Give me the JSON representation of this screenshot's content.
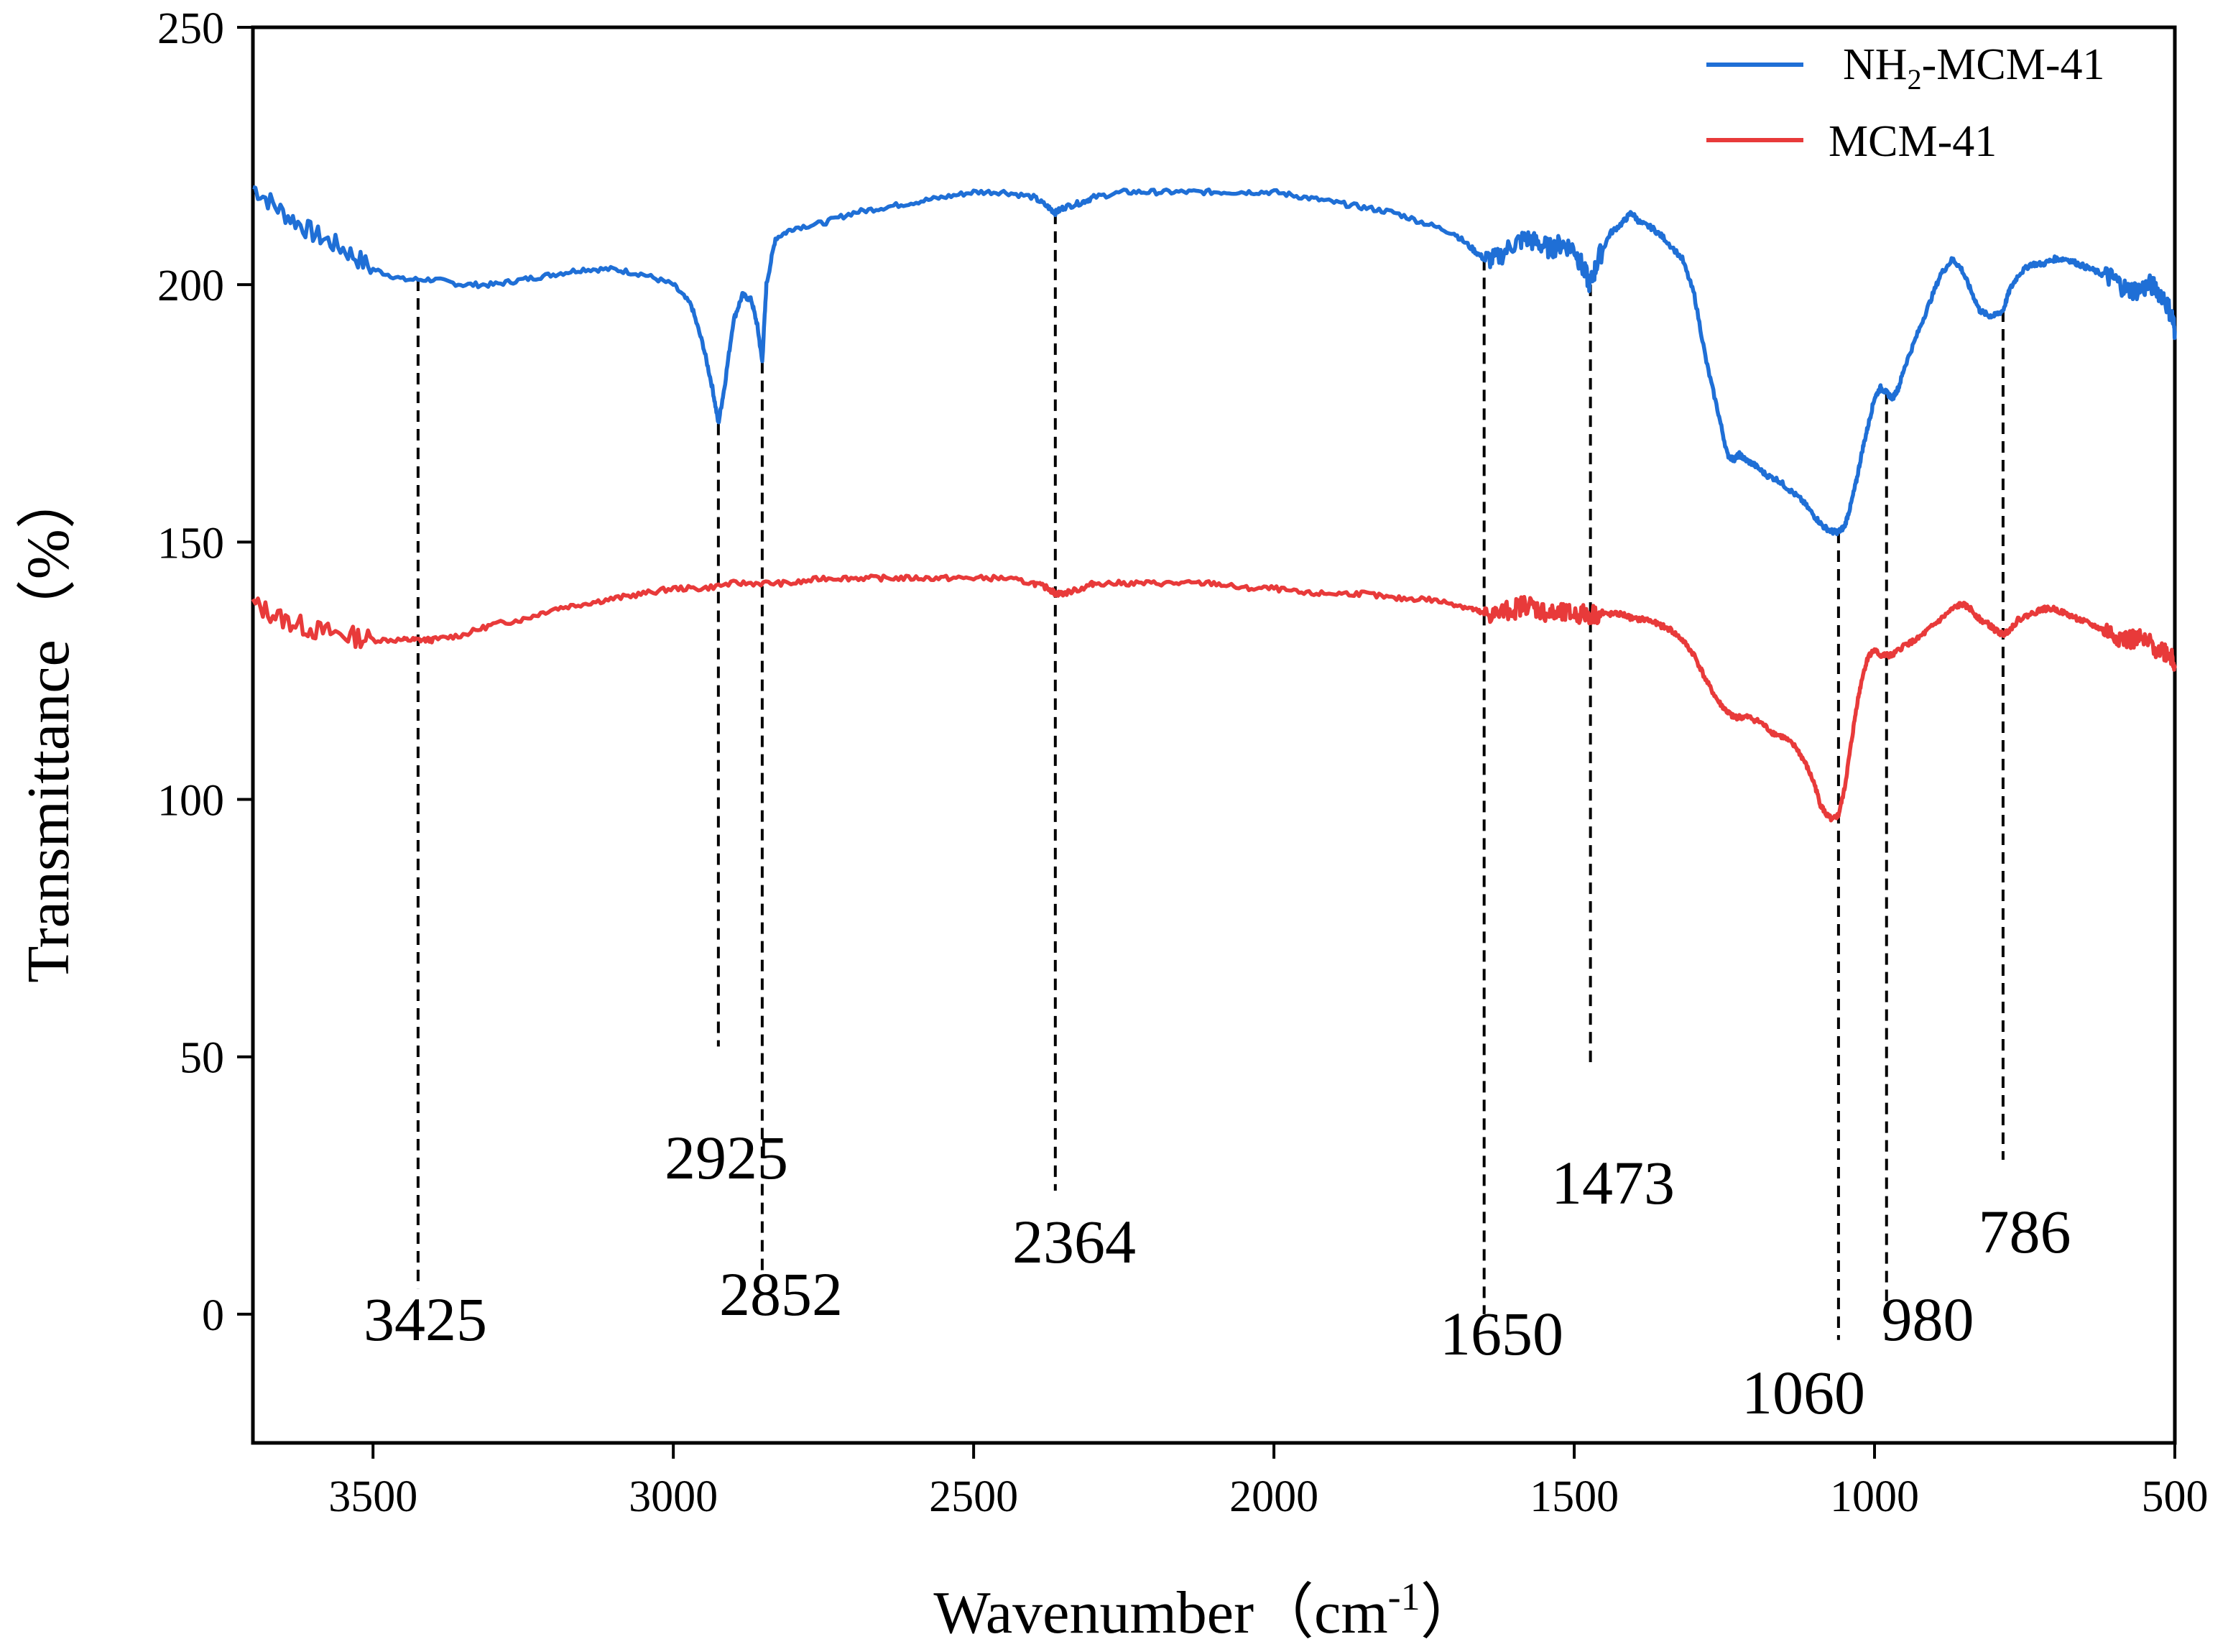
{
  "chart_data": {
    "type": "line",
    "title": "",
    "xlabel": "Wavenumber（cm",
    "xlabel_sup": "-1",
    "xlabel_close": "）",
    "ylabel": "Transmittance（%）",
    "xlim": [
      3700,
      500
    ],
    "ylim": [
      -25,
      250
    ],
    "x_ticks": [
      3500,
      3000,
      2500,
      2000,
      1500,
      1000,
      500
    ],
    "y_ticks": [
      0,
      50,
      100,
      150,
      200,
      250
    ],
    "grid": false,
    "legend_position": "top-right",
    "series": [
      {
        "name_main": "NH",
        "name_sub": "2",
        "name_rest": "-MCM-41",
        "color": "#1f6fd6",
        "x": [
          3700,
          3650,
          3600,
          3550,
          3500,
          3450,
          3400,
          3350,
          3300,
          3250,
          3200,
          3150,
          3100,
          3050,
          3000,
          2970,
          2950,
          2935,
          2925,
          2915,
          2900,
          2885,
          2870,
          2860,
          2852,
          2845,
          2830,
          2800,
          2750,
          2700,
          2650,
          2600,
          2550,
          2500,
          2450,
          2400,
          2375,
          2364,
          2350,
          2320,
          2300,
          2250,
          2200,
          2150,
          2100,
          2050,
          2000,
          1950,
          1900,
          1850,
          1800,
          1750,
          1700,
          1670,
          1650,
          1630,
          1600,
          1580,
          1560,
          1540,
          1520,
          1500,
          1485,
          1473,
          1460,
          1440,
          1420,
          1405,
          1390,
          1370,
          1350,
          1320,
          1300,
          1280,
          1260,
          1245,
          1235,
          1225,
          1215,
          1200,
          1180,
          1160,
          1140,
          1120,
          1100,
          1085,
          1070,
          1060,
          1050,
          1040,
          1030,
          1020,
          1010,
          1000,
          990,
          980,
          970,
          960,
          950,
          930,
          910,
          890,
          870,
          855,
          840,
          825,
          810,
          800,
          786,
          775,
          760,
          740,
          720,
          700,
          680,
          660,
          640,
          620,
          600,
          580,
          560,
          540,
          520,
          505,
          500
        ],
        "y": [
          219,
          214,
          210,
          207,
          203,
          201,
          201,
          200,
          200,
          201,
          202,
          203,
          203,
          202,
          200,
          196,
          188,
          180,
          173,
          180,
          193,
          198,
          197,
          192,
          185,
          200,
          209,
          211,
          212,
          214,
          215,
          216,
          217,
          218,
          218,
          217,
          215,
          214,
          215,
          216,
          217,
          218,
          218,
          218,
          218,
          218,
          218,
          217,
          216,
          215,
          214,
          212,
          210,
          207,
          205,
          205,
          208,
          209,
          208,
          207,
          208,
          207,
          203,
          200,
          205,
          210,
          212,
          214,
          212,
          211,
          209,
          205,
          198,
          185,
          175,
          167,
          166,
          167,
          166,
          165,
          163,
          162,
          160,
          158,
          155,
          153,
          152,
          152,
          153,
          157,
          162,
          168,
          173,
          178,
          180,
          179,
          178,
          180,
          184,
          190,
          196,
          202,
          205,
          203,
          199,
          195,
          194,
          194,
          195,
          199,
          202,
          204,
          204,
          205,
          205,
          204,
          203,
          202,
          201,
          199,
          199,
          200,
          198,
          194,
          191
        ]
      },
      {
        "name_main": "MCM-41",
        "name_sub": "",
        "name_rest": "",
        "color": "#e83a3a",
        "x": [
          3700,
          3650,
          3600,
          3550,
          3500,
          3450,
          3425,
          3400,
          3350,
          3300,
          3250,
          3200,
          3150,
          3100,
          3050,
          3000,
          2950,
          2900,
          2850,
          2800,
          2750,
          2700,
          2650,
          2600,
          2550,
          2500,
          2450,
          2400,
          2375,
          2364,
          2350,
          2320,
          2300,
          2250,
          2200,
          2150,
          2100,
          2050,
          2000,
          1950,
          1900,
          1850,
          1800,
          1750,
          1700,
          1670,
          1650,
          1630,
          1600,
          1580,
          1560,
          1540,
          1520,
          1500,
          1480,
          1460,
          1440,
          1420,
          1400,
          1380,
          1360,
          1340,
          1320,
          1300,
          1280,
          1260,
          1245,
          1235,
          1225,
          1210,
          1190,
          1170,
          1150,
          1130,
          1115,
          1100,
          1090,
          1080,
          1070,
          1060,
          1050,
          1040,
          1030,
          1020,
          1010,
          1000,
          990,
          980,
          970,
          950,
          930,
          910,
          890,
          870,
          855,
          840,
          825,
          810,
          800,
          786,
          775,
          760,
          740,
          720,
          700,
          680,
          660,
          640,
          620,
          600,
          580,
          560,
          540,
          520,
          505,
          500
        ]
      }
    ]
  },
  "peak_labels": {
    "p3425": {
      "value": 3425,
      "text": "3425"
    },
    "p2925": {
      "value": 2925,
      "text": "2925"
    },
    "p2852": {
      "value": 2852,
      "text": "2852"
    },
    "p2364": {
      "value": 2364,
      "text": "2364"
    },
    "p1650": {
      "value": 1650,
      "text": "1650"
    },
    "p1473": {
      "value": 1473,
      "text": "1473"
    },
    "p1060": {
      "value": 1060,
      "text": "1060"
    },
    "p980": {
      "value": 980,
      "text": "980"
    },
    "p786": {
      "value": 786,
      "text": "786"
    }
  },
  "mcm_y": [
    138,
    135,
    133,
    132,
    131,
    131,
    131,
    131,
    132,
    134,
    135,
    137,
    138,
    139,
    140,
    141,
    141,
    142,
    142,
    142,
    143,
    143,
    143,
    143,
    143,
    143,
    143,
    142,
    141,
    140,
    140,
    141,
    142,
    142,
    142,
    142,
    142,
    141,
    141,
    140,
    140,
    140,
    139,
    139,
    138,
    137,
    136,
    136,
    137,
    138,
    137,
    136,
    136,
    136,
    136,
    136,
    136,
    136,
    135,
    135,
    134,
    133,
    131,
    128,
    123,
    119,
    117,
    116,
    116,
    116,
    115,
    113,
    112,
    110,
    107,
    103,
    99,
    97,
    96,
    97,
    102,
    110,
    118,
    124,
    128,
    129,
    128,
    128,
    128,
    130,
    131,
    133,
    135,
    137,
    138,
    137,
    135,
    134,
    133,
    132,
    133,
    135,
    136,
    137,
    137,
    136,
    135,
    134,
    133,
    132,
    131,
    131,
    130,
    129,
    128,
    126
  ]
}
